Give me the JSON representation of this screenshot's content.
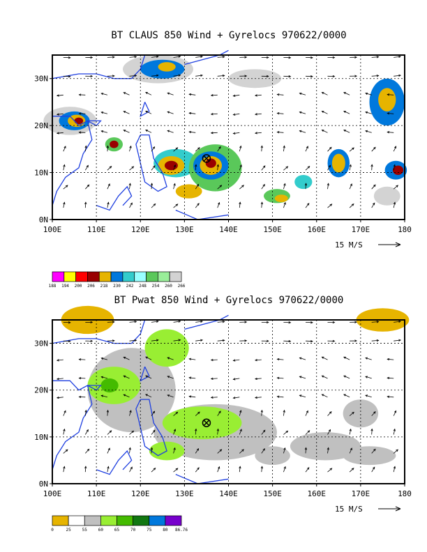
{
  "chart_data": [
    {
      "type": "heatmap",
      "title": "BT CLAUS 850 Wind + Gyrelocs 970622/0000",
      "x_ticks": [
        "100E",
        "110E",
        "120E",
        "130E",
        "140E",
        "150E",
        "160E",
        "170E",
        "180"
      ],
      "y_ticks": [
        "0N",
        "10N",
        "20N",
        "30N"
      ],
      "xlim": [
        100,
        180
      ],
      "ylim": [
        0,
        35
      ],
      "grid": true,
      "vector_scale_label": "15 M/S",
      "gyre_location": {
        "lon": 135,
        "lat": 13
      },
      "legend": {
        "labels": [
          "188",
          "194",
          "200",
          "206",
          "218",
          "230",
          "242",
          "248",
          "254",
          "260",
          "266"
        ],
        "colors": [
          "#ff00ff",
          "#ffff00",
          "#ff0000",
          "#990000",
          "#e6b400",
          "#0078dc",
          "#33cccc",
          "#99ffff",
          "#5ac85a",
          "#99ee99",
          "#d3d3d3"
        ]
      }
    },
    {
      "type": "heatmap",
      "title": "BT Pwat 850 Wind + Gyrelocs 970622/0000",
      "x_ticks": [
        "100E",
        "110E",
        "120E",
        "130E",
        "140E",
        "150E",
        "160E",
        "170E",
        "180"
      ],
      "y_ticks": [
        "0N",
        "10N",
        "20N",
        "30N"
      ],
      "xlim": [
        100,
        180
      ],
      "ylim": [
        0,
        35
      ],
      "grid": true,
      "vector_scale_label": "15 M/S",
      "gyre_location": {
        "lon": 135,
        "lat": 13
      },
      "legend": {
        "labels": [
          "0",
          "25",
          "55",
          "60",
          "65",
          "70",
          "75",
          "80",
          "86.76"
        ],
        "colors": [
          "#e6b400",
          "#ffffff",
          "#c0c0c0",
          "#99ee33",
          "#44bb00",
          "#117711",
          "#0078dc",
          "#7700cc"
        ]
      }
    }
  ]
}
